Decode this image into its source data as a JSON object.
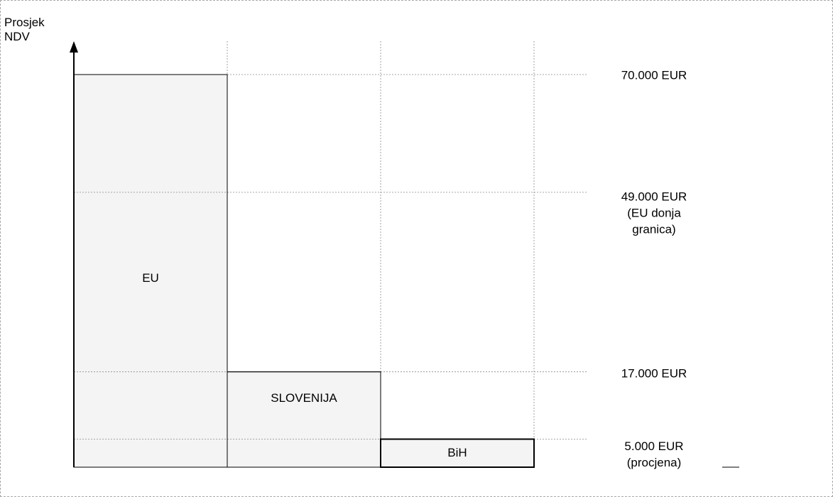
{
  "chart_data": {
    "type": "bar",
    "ylabel": "Prosjek\nNDV",
    "categories": [
      "EU",
      "SLOVENIJA",
      "BiH"
    ],
    "values": [
      70000,
      17000,
      5000
    ],
    "yticks": [
      {
        "value": 70000,
        "label": "70.000 EUR"
      },
      {
        "value": 49000,
        "label": "49.000 EUR\n(EU donja\ngranica)"
      },
      {
        "value": 17000,
        "label": "17.000 EUR"
      },
      {
        "value": 5000,
        "label": "5.000 EUR\n(procjena)"
      }
    ],
    "ylim": [
      0,
      70000
    ],
    "grid": true,
    "colors": {
      "bar_fill": "#f4f4f4",
      "bar_edge": "#000000",
      "grid": "#8a8a8a"
    }
  }
}
